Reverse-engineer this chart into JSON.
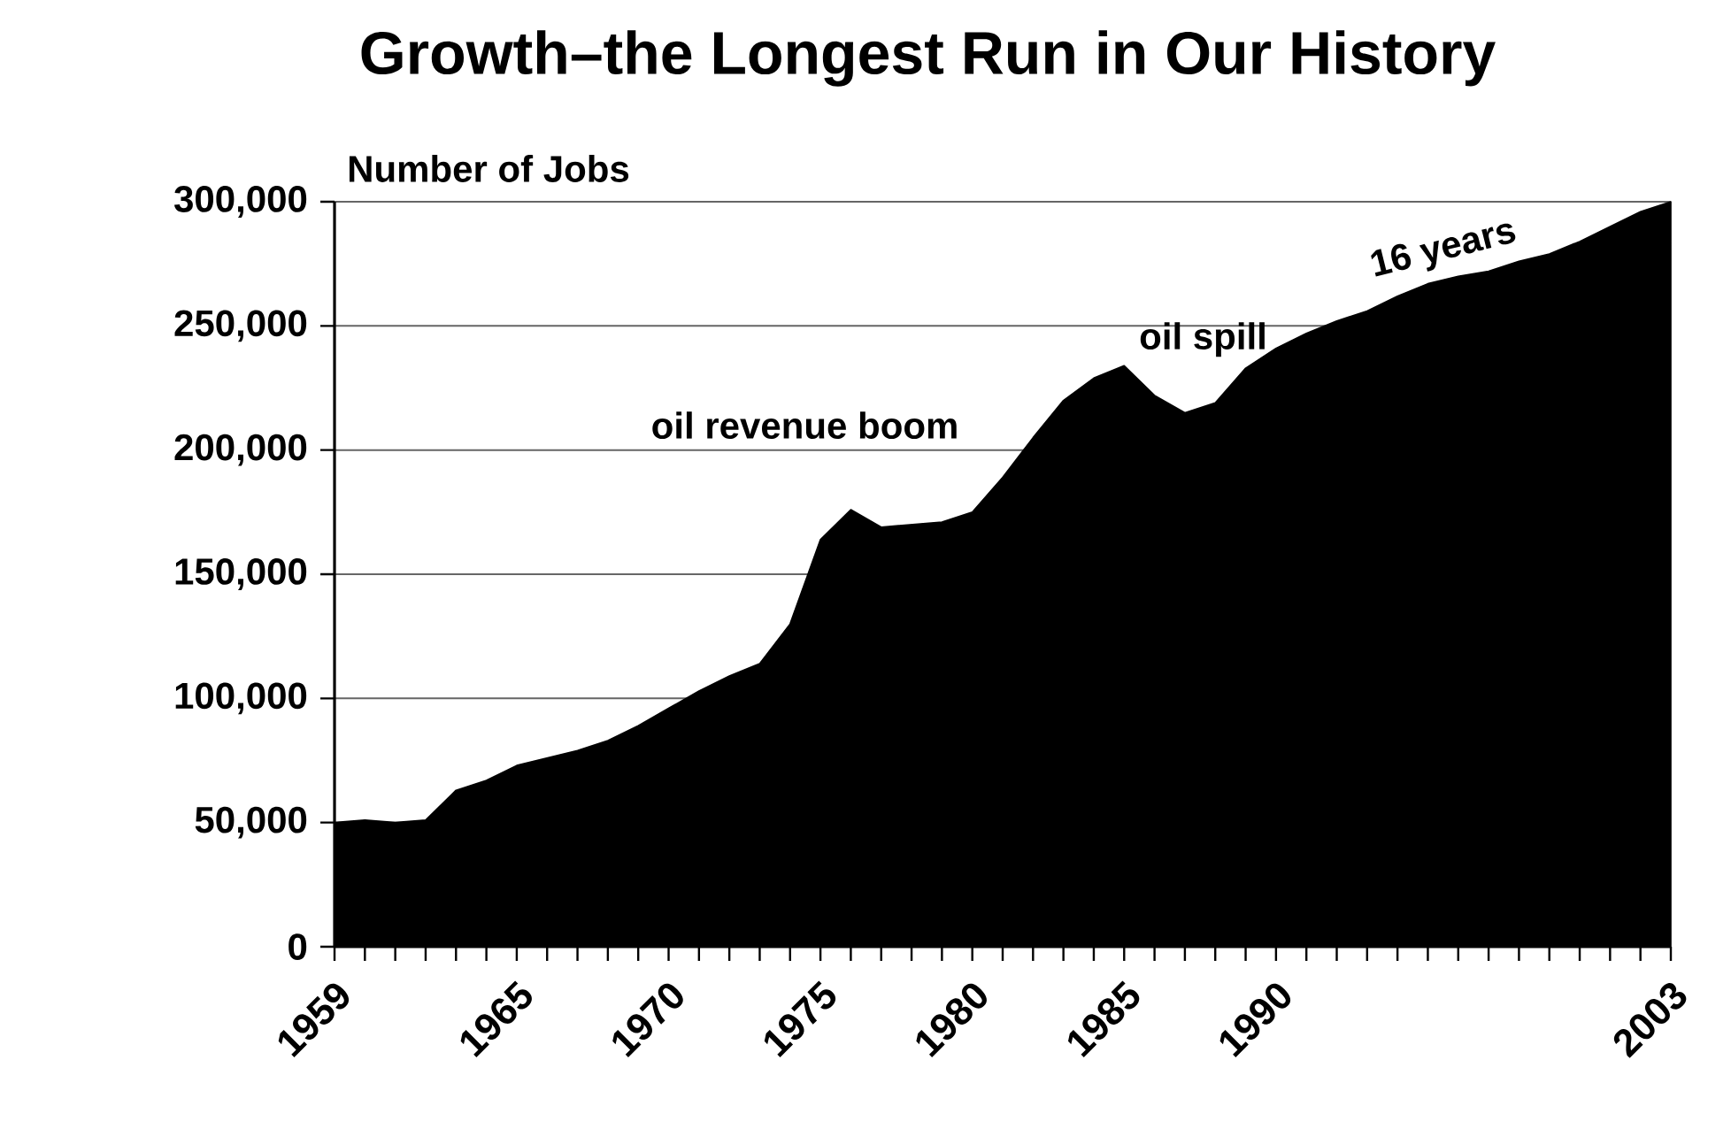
{
  "chart_data": {
    "type": "area",
    "title": "Growth–the Longest Run in Our History",
    "ylabel": "Number of Jobs",
    "x": [
      1959,
      1960,
      1961,
      1962,
      1963,
      1964,
      1965,
      1966,
      1967,
      1968,
      1969,
      1970,
      1971,
      1972,
      1973,
      1974,
      1975,
      1976,
      1977,
      1978,
      1979,
      1980,
      1981,
      1982,
      1983,
      1984,
      1985,
      1986,
      1987,
      1988,
      1989,
      1990,
      1991,
      1992,
      1993,
      1994,
      1995,
      1996,
      1997,
      1998,
      1999,
      2000,
      2001,
      2002,
      2003
    ],
    "values": [
      50000,
      51000,
      50000,
      51000,
      63000,
      67000,
      73000,
      76000,
      79000,
      83000,
      89000,
      96000,
      103000,
      109000,
      114000,
      130000,
      164000,
      176000,
      169000,
      170000,
      171000,
      175000,
      189000,
      205000,
      220000,
      229000,
      234000,
      222000,
      215000,
      219000,
      233000,
      241000,
      247000,
      252000,
      256000,
      262000,
      267000,
      270000,
      272000,
      276000,
      279000,
      284000,
      290000,
      296000,
      300000
    ],
    "color": "#000000",
    "xlim": [
      1959,
      2003
    ],
    "xticks": [
      1959,
      {
        "value": 1960,
        "label": null
      },
      {
        "value": 1961,
        "label": null
      },
      {
        "value": 1962,
        "label": null
      },
      {
        "value": 1963,
        "label": null
      },
      {
        "value": 1964,
        "label": null
      },
      1965,
      {
        "value": 1966,
        "label": null
      },
      {
        "value": 1967,
        "label": null
      },
      {
        "value": 1968,
        "label": null
      },
      {
        "value": 1969,
        "label": null
      },
      1970,
      {
        "value": 1971,
        "label": null
      },
      {
        "value": 1972,
        "label": null
      },
      {
        "value": 1973,
        "label": null
      },
      {
        "value": 1974,
        "label": null
      },
      1975,
      {
        "value": 1976,
        "label": null
      },
      {
        "value": 1977,
        "label": null
      },
      {
        "value": 1978,
        "label": null
      },
      {
        "value": 1979,
        "label": null
      },
      1980,
      {
        "value": 1981,
        "label": null
      },
      {
        "value": 1982,
        "label": null
      },
      {
        "value": 1983,
        "label": null
      },
      {
        "value": 1984,
        "label": null
      },
      1985,
      {
        "value": 1986,
        "label": null
      },
      {
        "value": 1987,
        "label": null
      },
      {
        "value": 1988,
        "label": null
      },
      {
        "value": 1989,
        "label": null
      },
      1990,
      {
        "value": 1991,
        "label": null
      },
      {
        "value": 1992,
        "label": null
      },
      {
        "value": 1993,
        "label": null
      },
      {
        "value": 1994,
        "label": null
      },
      {
        "value": 1995,
        "label": null
      },
      {
        "value": 1996,
        "label": null
      },
      {
        "value": 1997,
        "label": null
      },
      {
        "value": 1998,
        "label": null
      },
      {
        "value": 1999,
        "label": null
      },
      {
        "value": 2000,
        "label": null
      },
      {
        "value": 2001,
        "label": null
      },
      {
        "value": 2002,
        "label": null
      },
      2003
    ],
    "ylim": [
      0,
      300000
    ],
    "yticks": [
      0,
      {
        "value": 50000,
        "label": "50,000"
      },
      {
        "value": 100000,
        "label": "100,000"
      },
      {
        "value": 150000,
        "label": "150,000"
      },
      {
        "value": 200000,
        "label": "200,000"
      },
      {
        "value": 250000,
        "label": "250,000"
      },
      {
        "value": 300000,
        "label": "300,000"
      }
    ],
    "grid": "y",
    "annotations": [
      "oil revenue boom",
      "oil spill",
      "16 years"
    ]
  }
}
